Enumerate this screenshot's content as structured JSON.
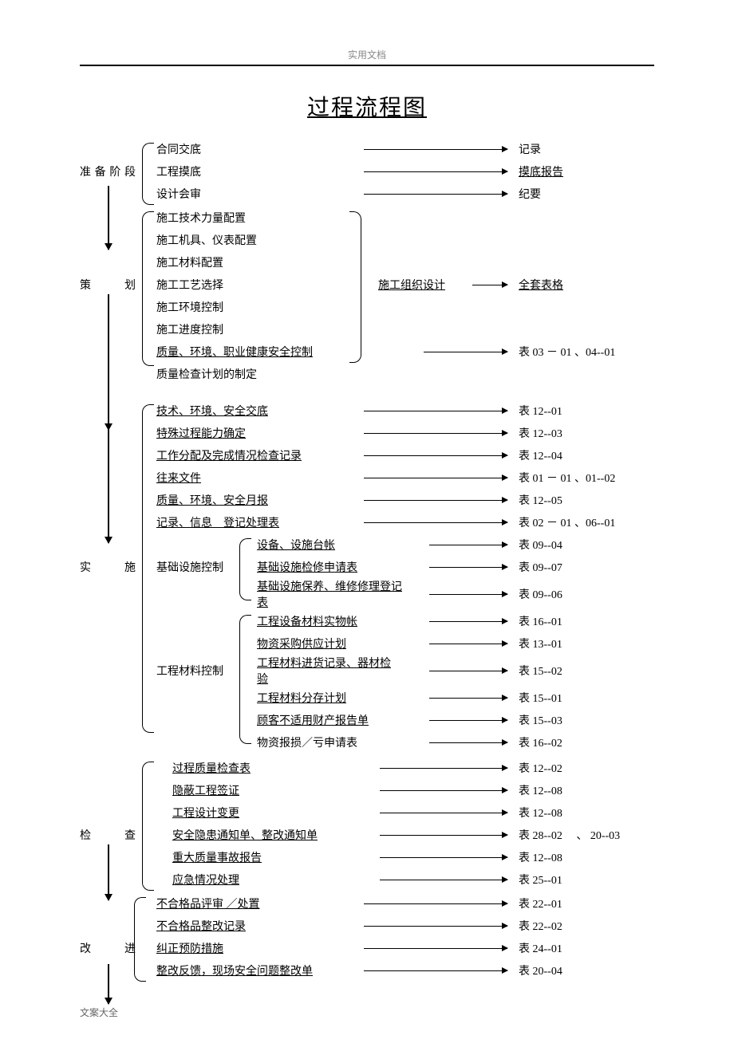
{
  "header": {
    "label": "实用文档"
  },
  "title": "过程流程图",
  "footer": "文案大全",
  "stages": {
    "prepare": "准备阶段",
    "plan": "策划",
    "implement": "实施",
    "check": "检查",
    "improve": "改进"
  },
  "prepare_rows": [
    {
      "item": "合同交底",
      "underline": false,
      "output": "记录",
      "output_u": false
    },
    {
      "item": "工程摸底",
      "underline": false,
      "output": "摸底报告",
      "output_u": true
    },
    {
      "item": "设计会审",
      "underline": false,
      "output": "纪要",
      "output_u": false
    }
  ],
  "plan_rows_top": [
    {
      "item": "施工技术力量配置"
    },
    {
      "item": "施工机具、仪表配置"
    },
    {
      "item": "施工材料配置"
    }
  ],
  "plan_row_mid": {
    "item": "施工工艺选择",
    "mid": "施工组织设计",
    "output": "全套表格",
    "output_u": true
  },
  "plan_rows_bottom": [
    {
      "item": "施工环境控制"
    },
    {
      "item": "施工进度控制"
    }
  ],
  "plan_row_qhse": {
    "item": "质量、环境、职业健康安全控制",
    "underline": true,
    "output": "表 03 － 01 、04--01"
  },
  "plan_row_last": {
    "item": "质量检查计划的制定"
  },
  "impl_rows_a": [
    {
      "item": "技术、环境、安全交底",
      "output": "表 12--01"
    },
    {
      "item": "特殊过程能力确定",
      "output": "表 12--03"
    },
    {
      "item": "工作分配及完成情况检查记录",
      "output": "表 12--04"
    },
    {
      "item": "往来文件",
      "output": "表  01 － 01 、01--02"
    },
    {
      "item": "质量、环境、安全月报",
      "output": "表  12--05"
    },
    {
      "item": "记录、信息　登记处理表",
      "output": "表 02 － 01 、06--01"
    }
  ],
  "impl_sub1_label": "基础设施控制",
  "impl_sub1_rows": [
    {
      "item": "设备、设施台帐",
      "output": "表 09--04"
    },
    {
      "item": "基础设施检修申请表",
      "output": "表 09--07"
    },
    {
      "item": "基础设施保养、维修修理登记表",
      "output": "表 09--06"
    }
  ],
  "impl_sub2_label": "工程材料控制",
  "impl_sub2_rows": [
    {
      "item": "工程设备材料实物帐",
      "output": "表 16--01"
    },
    {
      "item": "物资采购供应计划",
      "output": "表 13--01"
    },
    {
      "item": "工程材料进货记录、器材检验",
      "output": "表 15--02"
    },
    {
      "item": "工程材料分存计划",
      "output": "表 15--01"
    },
    {
      "item": "顾客不适用财产报告单",
      "output": "表 15--03"
    },
    {
      "item": "物资报损／亏申请表",
      "output": "表 16--02",
      "no_u": true
    }
  ],
  "check_rows": [
    {
      "item": "过程质量检查表",
      "output": "表 12--02"
    },
    {
      "item": "隐蔽工程签证",
      "output": "表 12--08"
    },
    {
      "item": "工程设计变更",
      "output": "表 12--08"
    },
    {
      "item": "安全隐患通知单、整改通知单",
      "output": "表 28--02　 、 20--03"
    },
    {
      "item": "重大质量事故报告",
      "output": "表 12--08"
    },
    {
      "item": "应急情况处理",
      "output": "表 25--01"
    }
  ],
  "improve_rows": [
    {
      "item": "不合格品评审 ／处置",
      "output": "表 22--01"
    },
    {
      "item": "不合格品整改记录",
      "output": "表 22--02"
    },
    {
      "item": "纠正预防措施",
      "output": "表 24--01"
    },
    {
      "item": "整改反馈，现场安全问题整改单",
      "output": "表 20--04"
    }
  ]
}
